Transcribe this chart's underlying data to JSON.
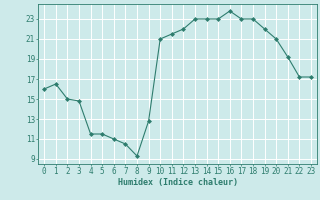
{
  "x": [
    0,
    1,
    2,
    3,
    4,
    5,
    6,
    7,
    8,
    9,
    10,
    11,
    12,
    13,
    14,
    15,
    16,
    17,
    18,
    19,
    20,
    21,
    22,
    23
  ],
  "y": [
    16,
    16.5,
    15,
    14.8,
    11.5,
    11.5,
    11,
    10.5,
    9.3,
    12.8,
    21,
    21.5,
    22,
    23,
    23,
    23,
    23.8,
    23,
    23,
    22,
    21,
    19.2,
    17.2,
    17.2
  ],
  "line_color": "#2e7d6e",
  "marker": "D",
  "marker_size": 2,
  "bg_color": "#cdeaea",
  "grid_color": "#ffffff",
  "xlabel": "Humidex (Indice chaleur)",
  "xlim": [
    -0.5,
    23.5
  ],
  "ylim": [
    8.5,
    24.5
  ],
  "yticks": [
    9,
    11,
    13,
    15,
    17,
    19,
    21,
    23
  ],
  "xticks": [
    0,
    1,
    2,
    3,
    4,
    5,
    6,
    7,
    8,
    9,
    10,
    11,
    12,
    13,
    14,
    15,
    16,
    17,
    18,
    19,
    20,
    21,
    22,
    23
  ],
  "label_fontsize": 6,
  "tick_fontsize": 5.5
}
